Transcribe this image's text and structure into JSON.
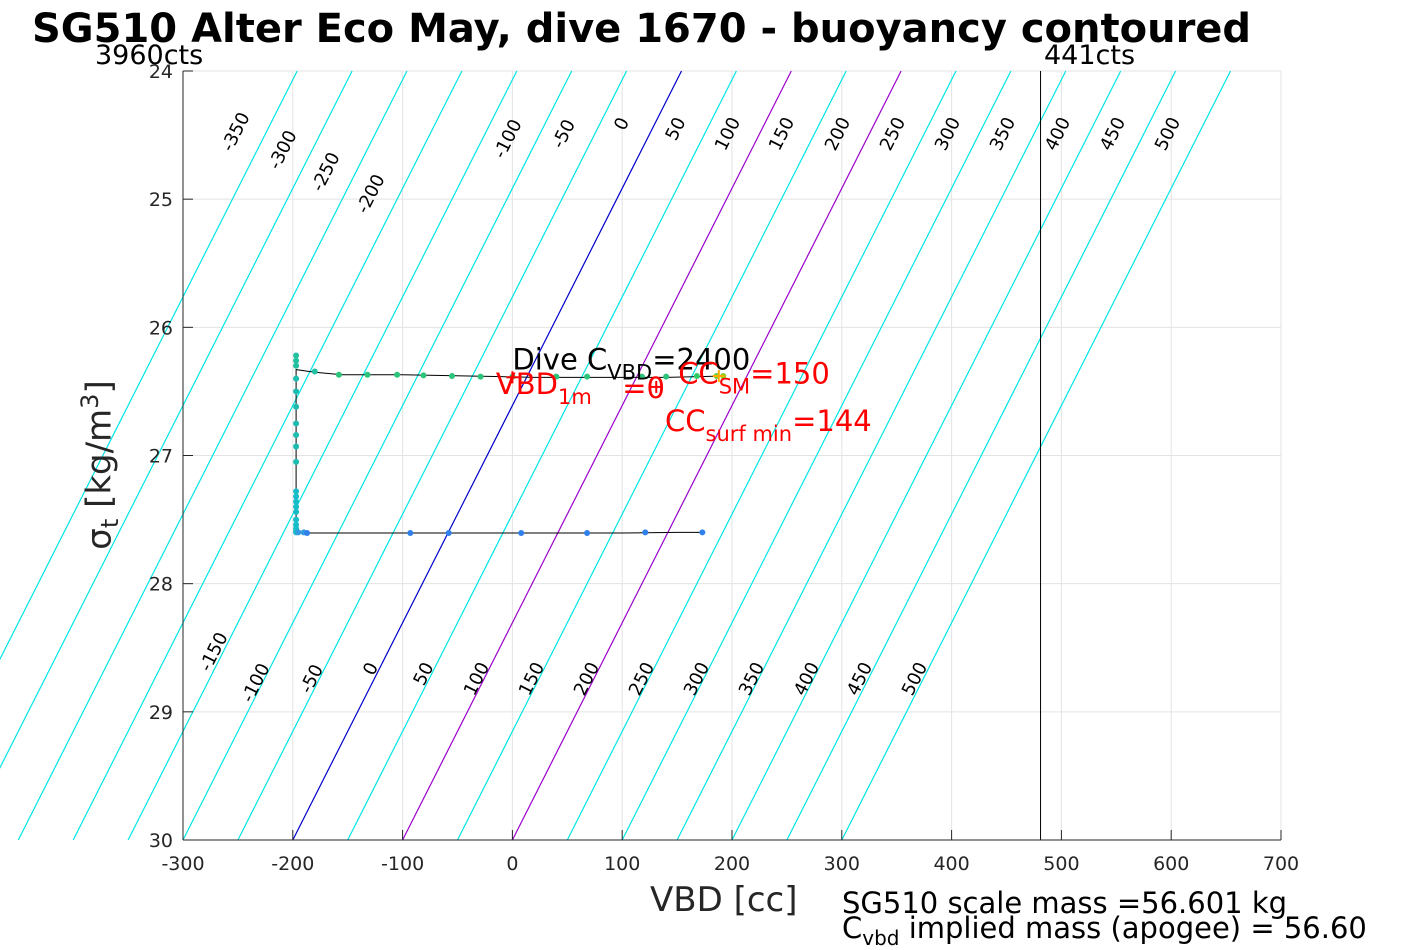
{
  "title": "SG510 Alter Eco May, dive 1670 - buoyancy contoured",
  "left_cts": "3960cts",
  "right_cts": "441cts",
  "footer": {
    "mass_line": "SG510 scale mass =56.601 kg",
    "implied_prefix": "C",
    "implied_sub": "vbd",
    "implied_rest": " implied mass (apogee) = 56.60"
  },
  "chart_data": {
    "type": "scatter",
    "title": "SG510 Alter Eco May, dive 1670 - buoyancy contoured",
    "xlabel": "VBD [cc]",
    "ylabel_main": "σ",
    "ylabel_sub": "t",
    "ylabel_unit": " [kg/m",
    "ylabel_sup": "3",
    "ylabel_close": "]",
    "xlim": [
      -300,
      700
    ],
    "ylim": [
      24,
      30
    ],
    "y_reversed": true,
    "grid": true,
    "xticks": [
      "-300",
      "-200",
      "-100",
      "0",
      "100",
      "200",
      "300",
      "400",
      "500",
      "600",
      "700"
    ],
    "yticks": [
      "24",
      "25",
      "26",
      "27",
      "28",
      "29",
      "30"
    ],
    "vertical_line_x": 481,
    "contours": {
      "levels": [
        -350,
        -300,
        -250,
        -200,
        -150,
        -100,
        -50,
        0,
        50,
        100,
        150,
        200,
        250,
        300,
        350,
        400,
        450,
        500
      ],
      "slope_cc_per_sigma": 59,
      "colors": {
        "default": "#00e5e5",
        "zero": "#0000cc",
        "magenta": "#9b00cc"
      },
      "magenta_levels": [
        100,
        200
      ],
      "top_labels": [
        "-350",
        "-300",
        "-250",
        "-200",
        "-100",
        "-50",
        "0",
        "50",
        "100",
        "150",
        "200",
        "250",
        "300",
        "350",
        "400",
        "450",
        "500"
      ],
      "bottom_labels": [
        "-150",
        "-100",
        "-50",
        "0",
        "50",
        "100",
        "150",
        "200",
        "250",
        "300",
        "350",
        "400",
        "450",
        "500"
      ]
    },
    "profile_line": {
      "color": "#000000",
      "x": [
        193,
        170,
        140,
        110,
        80,
        50,
        20,
        -10,
        -40,
        -70,
        -100,
        -130,
        -155,
        -180,
        -197,
        -197,
        -197,
        -197,
        -197,
        -197,
        -187,
        -150,
        -100,
        -50,
        0,
        50,
        100,
        150,
        173
      ],
      "y": [
        26.38,
        26.385,
        26.39,
        26.39,
        26.39,
        26.39,
        26.39,
        26.385,
        26.38,
        26.375,
        26.37,
        26.37,
        26.37,
        26.35,
        26.33,
        26.7,
        27.0,
        27.3,
        27.5,
        27.6,
        27.605,
        27.605,
        27.605,
        27.605,
        27.605,
        27.605,
        27.605,
        27.6,
        27.6
      ]
    },
    "points": [
      {
        "x": 192,
        "y": 26.38,
        "c": "#7ed321"
      },
      {
        "x": 186,
        "y": 26.38,
        "c": "#5fd345"
      },
      {
        "x": 168,
        "y": 26.38,
        "c": "#2fcc66"
      },
      {
        "x": 140,
        "y": 26.385,
        "c": "#2bc47a"
      },
      {
        "x": 118,
        "y": 26.385,
        "c": "#2bc47a"
      },
      {
        "x": 68,
        "y": 26.385,
        "c": "#2bc47a"
      },
      {
        "x": 40,
        "y": 26.385,
        "c": "#2bc47a"
      },
      {
        "x": 0,
        "y": 26.385,
        "c": "#2bc47a"
      },
      {
        "x": -29,
        "y": 26.385,
        "c": "#2bc47a"
      },
      {
        "x": -55,
        "y": 26.38,
        "c": "#2bc47a"
      },
      {
        "x": -81,
        "y": 26.375,
        "c": "#2bc47a"
      },
      {
        "x": -105,
        "y": 26.37,
        "c": "#2bc47a"
      },
      {
        "x": -132,
        "y": 26.37,
        "c": "#2bc47a"
      },
      {
        "x": -158,
        "y": 26.37,
        "c": "#2bc47a"
      },
      {
        "x": -180,
        "y": 26.345,
        "c": "#22bfa0"
      },
      {
        "x": -197,
        "y": 26.22,
        "c": "#22bfa0"
      },
      {
        "x": -197,
        "y": 26.26,
        "c": "#22bfa0"
      },
      {
        "x": -197,
        "y": 26.3,
        "c": "#22bfa0"
      },
      {
        "x": -197,
        "y": 26.4,
        "c": "#1cbcb0"
      },
      {
        "x": -197,
        "y": 26.5,
        "c": "#1cbcb0"
      },
      {
        "x": -197,
        "y": 26.62,
        "c": "#1cbcb0"
      },
      {
        "x": -197,
        "y": 26.75,
        "c": "#1cbcb0"
      },
      {
        "x": -197,
        "y": 26.84,
        "c": "#1cbcb0"
      },
      {
        "x": -197,
        "y": 26.93,
        "c": "#1cbcb0"
      },
      {
        "x": -197,
        "y": 27.05,
        "c": "#1cbcb0"
      },
      {
        "x": -197,
        "y": 27.28,
        "c": "#16bcc8"
      },
      {
        "x": -197,
        "y": 27.32,
        "c": "#16bcc8"
      },
      {
        "x": -197,
        "y": 27.36,
        "c": "#16bcc8"
      },
      {
        "x": -197,
        "y": 27.4,
        "c": "#16bcc8"
      },
      {
        "x": -197,
        "y": 27.44,
        "c": "#16bcc8"
      },
      {
        "x": -197,
        "y": 27.5,
        "c": "#16bcc8"
      },
      {
        "x": -197,
        "y": 27.54,
        "c": "#16bcc8"
      },
      {
        "x": -197,
        "y": 27.57,
        "c": "#16bcc8"
      },
      {
        "x": -197,
        "y": 27.59,
        "c": "#16bcc8"
      },
      {
        "x": -197,
        "y": 27.6,
        "c": "#16bcc8"
      },
      {
        "x": -195,
        "y": 27.6,
        "c": "#3399e0"
      },
      {
        "x": -190,
        "y": 27.6,
        "c": "#3399e0"
      },
      {
        "x": -187,
        "y": 27.605,
        "c": "#2f80ea"
      },
      {
        "x": -93,
        "y": 27.605,
        "c": "#2f80ea"
      },
      {
        "x": -58,
        "y": 27.605,
        "c": "#2f80ea"
      },
      {
        "x": 8,
        "y": 27.605,
        "c": "#2f80ea"
      },
      {
        "x": 68,
        "y": 27.605,
        "c": "#2f80ea"
      },
      {
        "x": 121,
        "y": 27.6,
        "c": "#2f80ea"
      },
      {
        "x": 173,
        "y": 27.6,
        "c": "#2f80ea"
      }
    ],
    "markers": [
      {
        "x": 0,
        "y": 26.39,
        "c": "#ff0000",
        "symbol": "+"
      },
      {
        "x": 131,
        "y": 26.465,
        "c": "#ff0000",
        "symbol": "+"
      },
      {
        "x": 188,
        "y": 26.38,
        "c": "#ffaa00",
        "symbol": "+"
      }
    ],
    "annotations": {
      "dive_c": {
        "pre": "Dive C",
        "sub": "VBD",
        "post": "=2400",
        "x": 0,
        "y": 26.33,
        "color": "#000000"
      },
      "vbd_1m": {
        "pre": "VBD",
        "sub": "1m",
        "post": "",
        "x": -15,
        "y": 26.52,
        "color": "#ff0000"
      },
      "zero_mark": {
        "text": "=0",
        "x": 100,
        "y": 26.55,
        "color": "#ff0000"
      },
      "cc_sm": {
        "pre": "CC",
        "sub": "SM",
        "post": "=150",
        "x": 151,
        "y": 26.44,
        "color": "#ff0000"
      },
      "cc_surf": {
        "pre": "CC",
        "sub": "surf min",
        "post": "=144",
        "x": 139,
        "y": 26.81,
        "color": "#ff0000"
      }
    }
  }
}
